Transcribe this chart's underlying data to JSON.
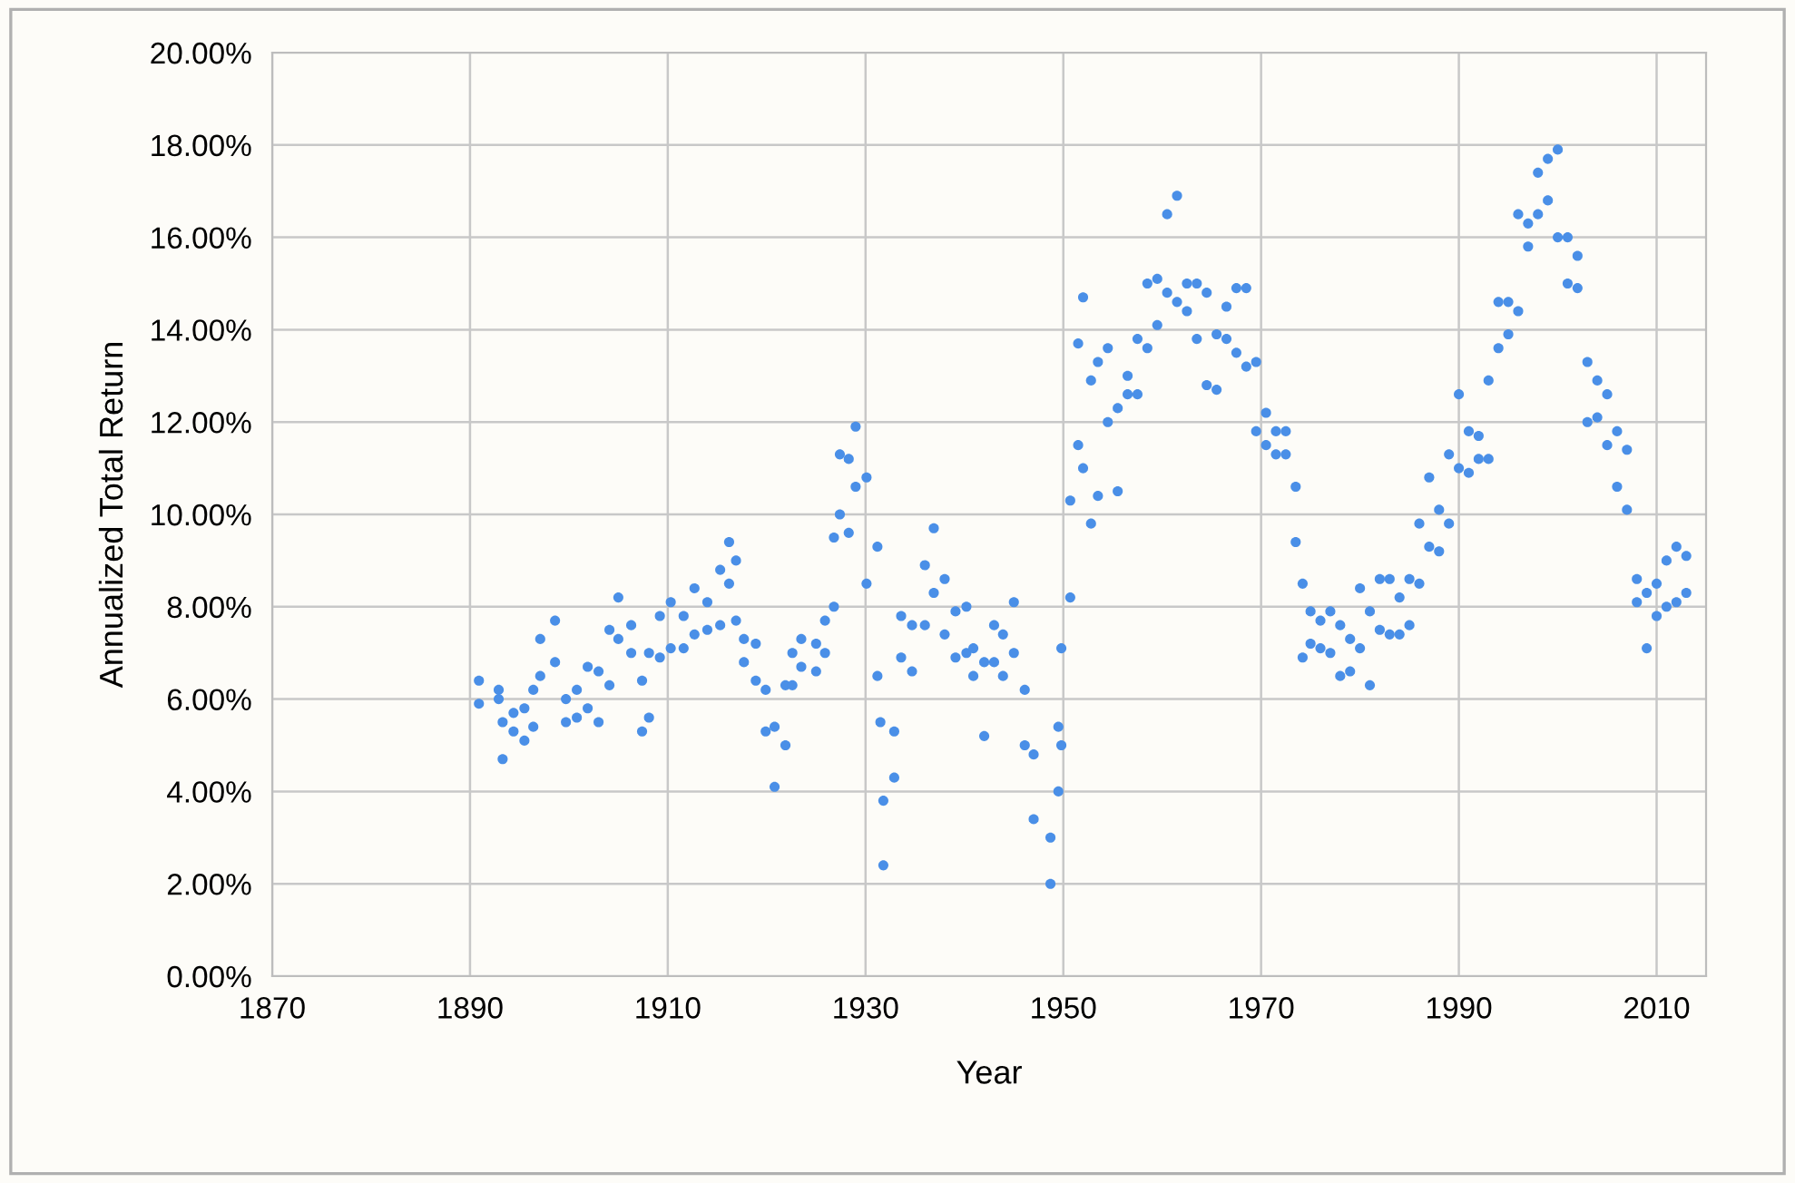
{
  "chart_data": {
    "type": "scatter",
    "xlabel": "Year",
    "ylabel": "Annualized Total Return",
    "marker": "circle",
    "grid": true,
    "legend": false,
    "xlim": [
      1870,
      2015
    ],
    "xticks": [
      1870,
      1890,
      1910,
      1930,
      1950,
      1970,
      1990,
      2010
    ],
    "ylim": [
      0,
      20
    ],
    "yticks": [
      {
        "value": 0,
        "label": "0.00%"
      },
      {
        "value": 2,
        "label": "2.00%"
      },
      {
        "value": 4,
        "label": "4.00%"
      },
      {
        "value": 6,
        "label": "6.00%"
      },
      {
        "value": 8,
        "label": "8.00%"
      },
      {
        "value": 10,
        "label": "10.00%"
      },
      {
        "value": 12,
        "label": "12.00%"
      },
      {
        "value": 14,
        "label": "14.00%"
      },
      {
        "value": 16,
        "label": "16.00%"
      },
      {
        "value": 18,
        "label": "18.00%"
      },
      {
        "value": 20,
        "label": "20.00%"
      }
    ],
    "series": [
      {
        "color": "#4a8fe7",
        "x": [
          1890.9,
          1890.9,
          1892.9,
          1892.9,
          1893.3,
          1893.3,
          1894.4,
          1894.4,
          1895.5,
          1895.5,
          1896.4,
          1896.4,
          1897.1,
          1897.1,
          1898.6,
          1898.6,
          1899.7,
          1899.7,
          1900.8,
          1900.8,
          1901.9,
          1901.9,
          1903.0,
          1903.0,
          1904.1,
          1904.1,
          1905.0,
          1905.0,
          1906.3,
          1906.3,
          1907.4,
          1907.4,
          1908.1,
          1908.1,
          1909.2,
          1909.2,
          1910.3,
          1910.3,
          1911.6,
          1911.6,
          1912.7,
          1912.7,
          1914.0,
          1914.0,
          1915.3,
          1915.3,
          1916.2,
          1916.2,
          1916.9,
          1916.9,
          1917.7,
          1917.7,
          1918.9,
          1918.9,
          1919.9,
          1919.9,
          1920.8,
          1920.8,
          1921.9,
          1921.9,
          1922.6,
          1922.6,
          1923.5,
          1923.5,
          1925.0,
          1925.0,
          1925.9,
          1925.9,
          1926.8,
          1926.8,
          1927.4,
          1927.4,
          1928.3,
          1928.3,
          1929.0,
          1929.0,
          1930.1,
          1930.1,
          1931.2,
          1931.2,
          1931.5,
          1931.8,
          1931.8,
          1932.9,
          1932.9,
          1933.6,
          1933.6,
          1934.7,
          1934.7,
          1936.0,
          1936.0,
          1936.9,
          1936.9,
          1938.0,
          1938.0,
          1939.1,
          1939.1,
          1940.2,
          1940.2,
          1940.9,
          1940.9,
          1942.0,
          1942.0,
          1943.0,
          1943.0,
          1943.9,
          1943.9,
          1945.0,
          1945.0,
          1946.1,
          1946.1,
          1947.0,
          1947.0,
          1948.7,
          1948.7,
          1949.5,
          1949.5,
          1949.8,
          1949.8,
          1950.7,
          1950.7,
          1951.5,
          1951.5,
          1952.0,
          1952.0,
          1952.8,
          1952.8,
          1953.5,
          1953.5,
          1954.5,
          1954.5,
          1955.5,
          1955.5,
          1956.5,
          1956.5,
          1957.5,
          1957.5,
          1958.5,
          1958.5,
          1959.5,
          1959.5,
          1960.5,
          1960.5,
          1961.5,
          1961.5,
          1962.5,
          1962.5,
          1963.5,
          1963.5,
          1964.5,
          1964.5,
          1965.5,
          1965.5,
          1966.5,
          1966.5,
          1967.5,
          1967.5,
          1968.5,
          1968.5,
          1969.5,
          1969.5,
          1970.5,
          1970.5,
          1971.5,
          1971.5,
          1972.5,
          1972.5,
          1973.5,
          1973.5,
          1974.2,
          1974.2,
          1975,
          1975,
          1976,
          1976,
          1977,
          1977,
          1978,
          1978,
          1979,
          1979,
          1980,
          1980,
          1981,
          1981,
          1982,
          1982,
          1983,
          1983,
          1984,
          1984,
          1985,
          1985,
          1986,
          1986,
          1987,
          1987,
          1988,
          1988,
          1989,
          1989,
          1990,
          1990,
          1991,
          1991,
          1992,
          1992,
          1993,
          1993,
          1994,
          1994,
          1995,
          1995,
          1996,
          1996,
          1997,
          1997,
          1998,
          1998,
          1999,
          1999,
          2000,
          2000,
          2001,
          2001,
          2002,
          2002,
          2003,
          2003,
          2004,
          2004,
          2005,
          2005,
          2006,
          2006,
          2007,
          2007,
          2008,
          2008,
          2009,
          2009,
          2010,
          2010,
          2011,
          2011,
          2012,
          2012,
          2013,
          2013
        ],
        "values": [
          6.4,
          5.9,
          6.2,
          6.0,
          5.5,
          4.7,
          5.3,
          5.7,
          5.8,
          5.1,
          6.2,
          5.4,
          7.3,
          6.5,
          7.7,
          6.8,
          6.0,
          5.5,
          6.2,
          5.6,
          6.7,
          5.8,
          6.6,
          5.5,
          7.5,
          6.3,
          8.2,
          7.3,
          7.6,
          7.0,
          6.4,
          5.3,
          7.0,
          5.6,
          7.8,
          6.9,
          8.1,
          7.1,
          7.8,
          7.1,
          8.4,
          7.4,
          8.1,
          7.5,
          8.8,
          7.6,
          9.4,
          8.5,
          9.0,
          7.7,
          7.3,
          6.8,
          7.2,
          6.4,
          6.2,
          5.3,
          5.4,
          4.1,
          6.3,
          5.0,
          7.0,
          6.3,
          7.3,
          6.7,
          7.2,
          6.6,
          7.7,
          7.0,
          9.5,
          8.0,
          11.3,
          10.0,
          11.2,
          9.6,
          11.9,
          10.6,
          10.8,
          8.5,
          9.3,
          6.5,
          5.5,
          3.8,
          2.4,
          5.3,
          4.3,
          7.8,
          6.9,
          7.6,
          6.6,
          8.9,
          7.6,
          9.7,
          8.3,
          8.6,
          7.4,
          7.9,
          6.9,
          8.0,
          7.0,
          7.1,
          6.5,
          6.8,
          5.2,
          7.6,
          6.8,
          7.4,
          6.5,
          8.1,
          7.0,
          6.2,
          5.0,
          4.8,
          3.4,
          3.0,
          2.0,
          5.4,
          4.0,
          7.1,
          5.0,
          10.3,
          8.2,
          13.7,
          11.5,
          14.7,
          11.0,
          12.9,
          9.8,
          13.3,
          10.4,
          13.6,
          12.0,
          12.3,
          10.5,
          13.0,
          12.6,
          13.8,
          12.6,
          15.0,
          13.6,
          15.1,
          14.1,
          16.5,
          14.8,
          16.9,
          14.6,
          15.0,
          14.4,
          15.0,
          13.8,
          14.8,
          12.8,
          13.9,
          12.7,
          14.5,
          13.8,
          14.9,
          13.5,
          14.9,
          13.2,
          13.3,
          11.8,
          12.2,
          11.5,
          11.8,
          11.3,
          11.8,
          11.3,
          10.6,
          9.4,
          8.5,
          6.9,
          7.9,
          7.2,
          7.7,
          7.1,
          7.9,
          7.0,
          7.6,
          6.5,
          7.3,
          6.6,
          8.4,
          7.1,
          7.9,
          6.3,
          8.6,
          7.5,
          8.6,
          7.4,
          8.2,
          7.4,
          8.6,
          7.6,
          9.8,
          8.5,
          10.8,
          9.3,
          10.1,
          9.2,
          11.3,
          9.8,
          12.6,
          11.0,
          11.8,
          10.9,
          11.7,
          11.2,
          12.9,
          11.2,
          14.6,
          13.6,
          14.6,
          13.9,
          16.5,
          14.4,
          16.3,
          15.8,
          17.4,
          16.5,
          17.7,
          16.8,
          17.9,
          16.0,
          16.0,
          15.0,
          15.6,
          14.9,
          13.3,
          12.0,
          12.9,
          12.1,
          12.6,
          11.5,
          11.8,
          10.6,
          11.4,
          10.1,
          8.6,
          8.1,
          8.3,
          7.1,
          8.5,
          7.8,
          9.0,
          8.0,
          9.3,
          8.1,
          9.1,
          8.3
        ]
      }
    ]
  }
}
